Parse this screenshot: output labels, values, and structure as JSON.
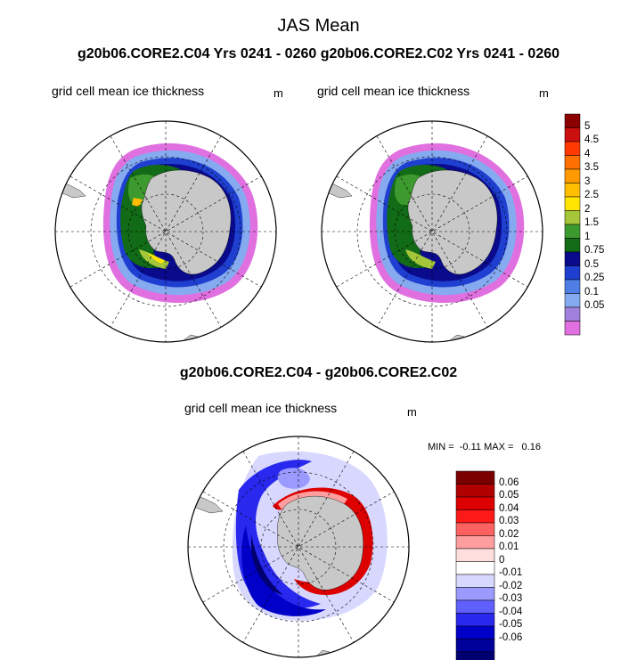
{
  "main_title": "JAS Mean",
  "subtitle": "g20b06.CORE2.C04  Yrs 0241 - 0260 g20b06.CORE2.C02  Yrs 0241 - 0260",
  "diff_title": "g20b06.CORE2.C04 - g20b06.CORE2.C02",
  "panels": {
    "left": {
      "label": "grid cell mean ice thickness",
      "unit": "m"
    },
    "right": {
      "label": "grid cell mean ice thickness",
      "unit": "m"
    },
    "diff": {
      "label": "grid cell mean ice thickness",
      "unit": "m"
    }
  },
  "stats": "MIN =  -0.11 MAX =   0.16",
  "colorbar_top": {
    "labels": [
      "5",
      "4.5",
      "4",
      "3.5",
      "3",
      "2.5",
      "2",
      "1.5",
      "1",
      "0.75",
      "0.5",
      "0.25",
      "0.1",
      "0.05"
    ],
    "colors": [
      "#8b0000",
      "#cc1010",
      "#ff3a00",
      "#ff7000",
      "#ff9b00",
      "#ffbe00",
      "#ffe400",
      "#a6c63a",
      "#3d9a2e",
      "#126b16",
      "#0a0a8c",
      "#1f3fd0",
      "#4f7fe6",
      "#86aaf0",
      "#a080dc",
      "#e070e0"
    ]
  },
  "colorbar_diff": {
    "labels": [
      "0.06",
      "0.05",
      "0.04",
      "0.03",
      "0.02",
      "0.01",
      "0",
      "-0.01",
      "-0.02",
      "-0.03",
      "-0.04",
      "-0.05",
      "-0.06"
    ],
    "colors": [
      "#7a0000",
      "#b00000",
      "#dd0000",
      "#ff1a1a",
      "#ff6060",
      "#ff9e9e",
      "#ffdede",
      "#ffffff",
      "#d8d8ff",
      "#9a9aff",
      "#6060ff",
      "#2828ee",
      "#0000c8",
      "#00009a",
      "#000070"
    ]
  },
  "colors": {
    "land": "#c8c8c8",
    "ocean": "#ffffff",
    "grid": "#000000"
  }
}
